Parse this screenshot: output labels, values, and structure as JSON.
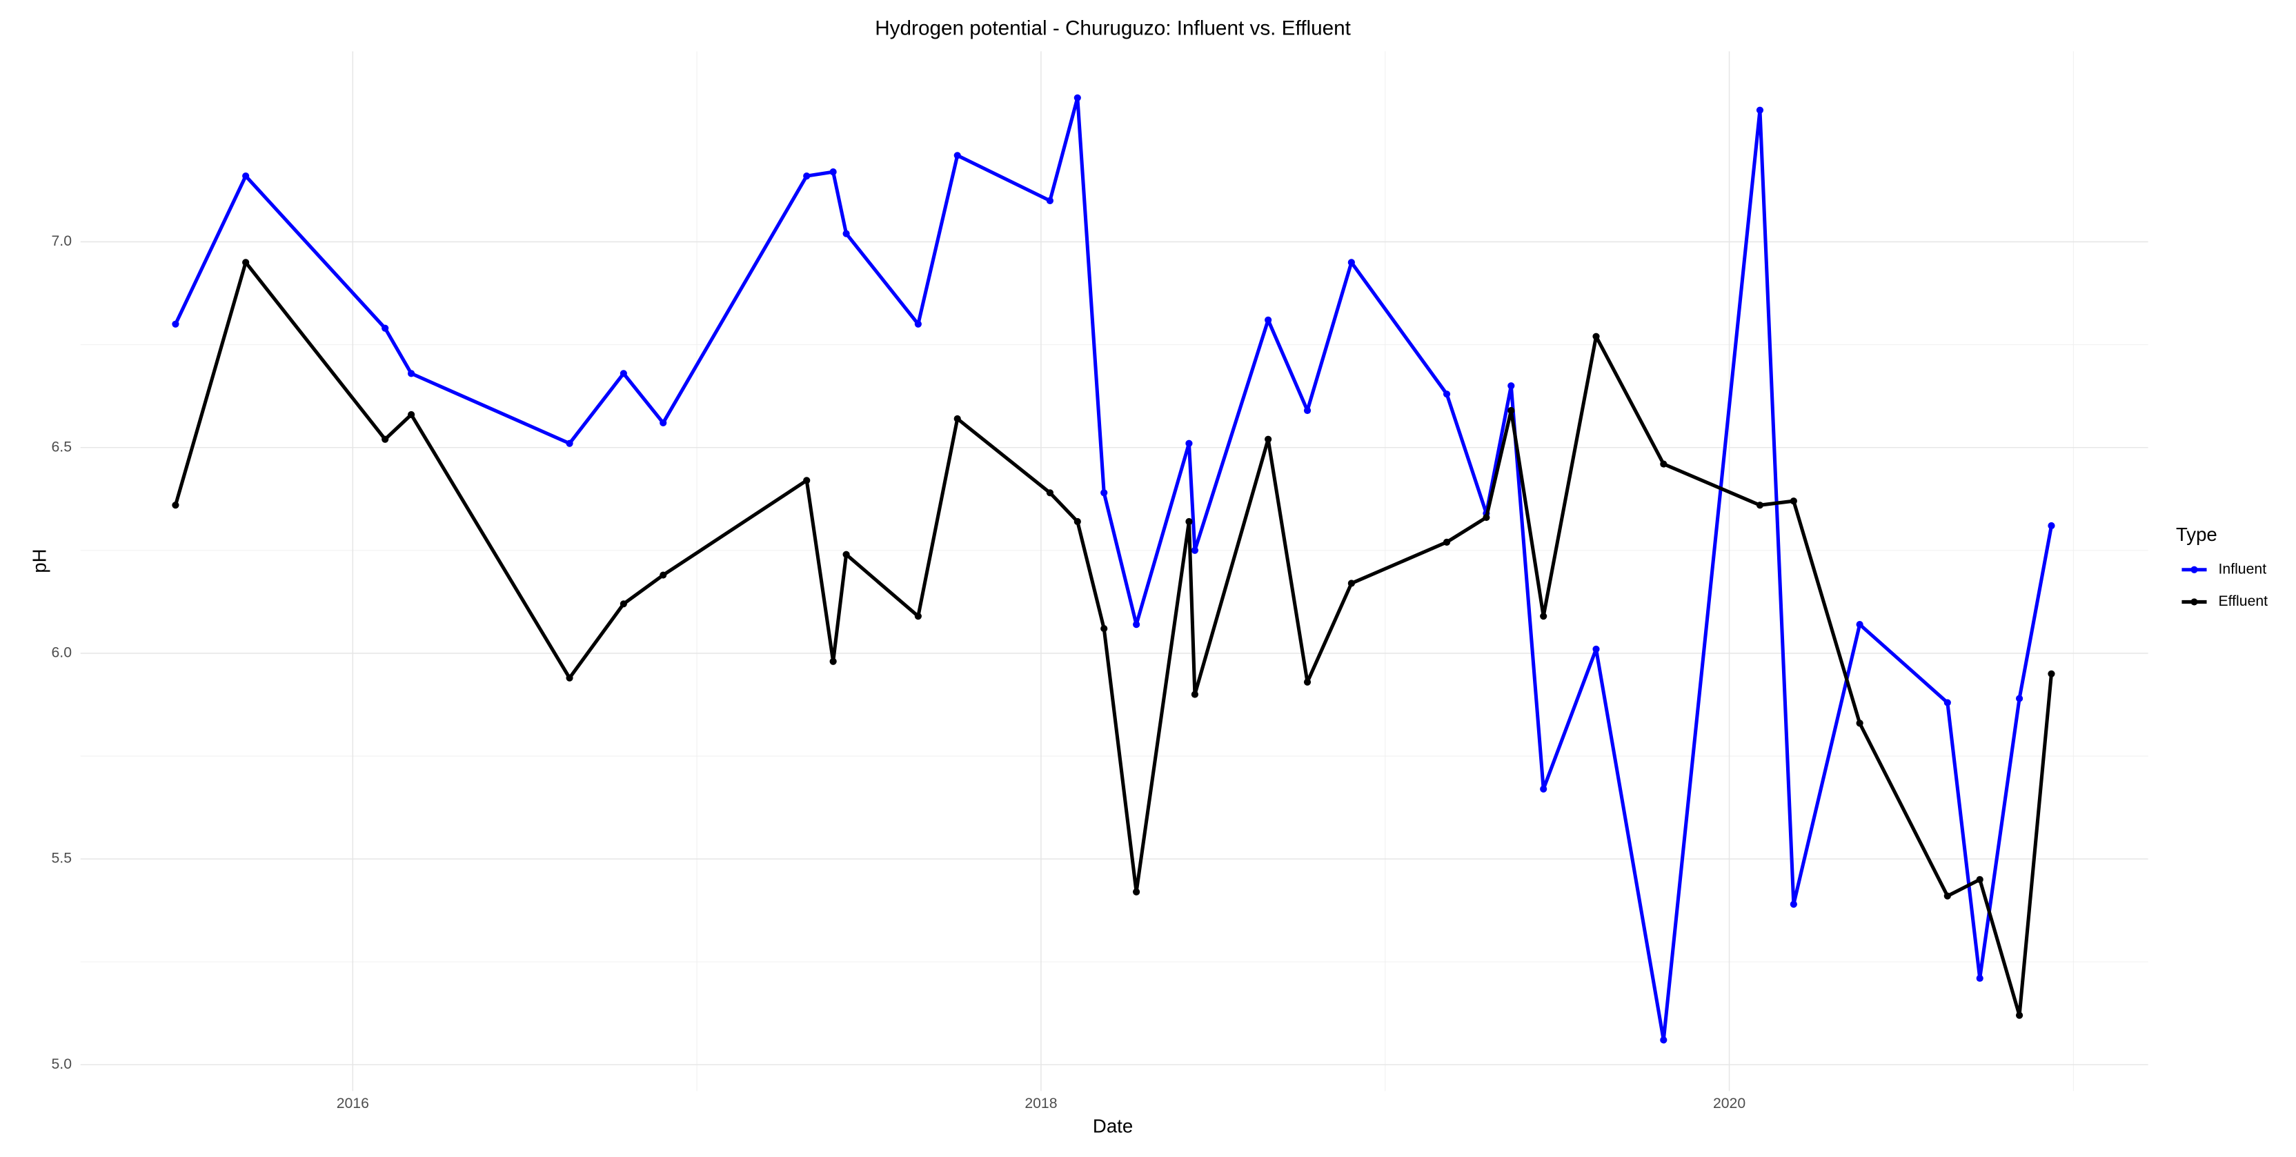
{
  "chart_data": {
    "type": "line",
    "title": "Hydrogen potential - Churuguzo: Influent vs. Effluent",
    "x_label": "Date",
    "y_label": "pH",
    "legend_title": "Type",
    "legend_position": "right",
    "grid": true,
    "x": [
      2015.485,
      2015.689,
      2016.094,
      2016.17,
      2016.63,
      2016.787,
      2016.902,
      2017.319,
      2017.396,
      2017.434,
      2017.643,
      2017.757,
      2018.026,
      2018.106,
      2018.183,
      2018.277,
      2018.43,
      2018.447,
      2018.66,
      2018.774,
      2018.902,
      2019.179,
      2019.294,
      2019.366,
      2019.46,
      2019.613,
      2019.809,
      2020.089,
      2020.187,
      2020.379,
      2020.634,
      2020.728,
      2020.843,
      2020.936
    ],
    "xlim": [
      2015.209,
      2021.217
    ],
    "xticks": [
      2016,
      2018,
      2020
    ],
    "ylim": [
      4.936,
      7.463
    ],
    "yticks": [
      {
        "value": 5,
        "label": "5.0"
      },
      5.5,
      {
        "value": 6,
        "label": "6.0"
      },
      6.5,
      {
        "value": 7,
        "label": "7.0"
      }
    ],
    "series": [
      {
        "name": "Influent",
        "color": "#0000ff",
        "values": [
          6.8,
          7.16,
          6.79,
          6.68,
          6.51,
          6.68,
          6.56,
          7.16,
          7.17,
          7.02,
          6.8,
          7.21,
          7.1,
          7.35,
          6.39,
          6.07,
          6.51,
          6.25,
          6.81,
          6.59,
          6.95,
          6.63,
          6.34,
          6.65,
          5.67,
          6.01,
          5.06,
          7.32,
          5.39,
          6.07,
          5.88,
          5.21,
          5.89,
          6.31
        ]
      },
      {
        "name": "Effluent",
        "color": "#000000",
        "values": [
          6.36,
          6.95,
          6.52,
          6.58,
          5.94,
          6.12,
          6.19,
          6.42,
          5.98,
          6.24,
          6.09,
          6.57,
          6.39,
          6.32,
          6.06,
          5.42,
          6.32,
          5.9,
          6.52,
          5.93,
          6.17,
          6.27,
          6.33,
          6.59,
          6.09,
          6.77,
          6.46,
          6.36,
          6.37,
          5.83,
          5.41,
          5.45,
          5.12,
          5.95
        ]
      }
    ]
  }
}
